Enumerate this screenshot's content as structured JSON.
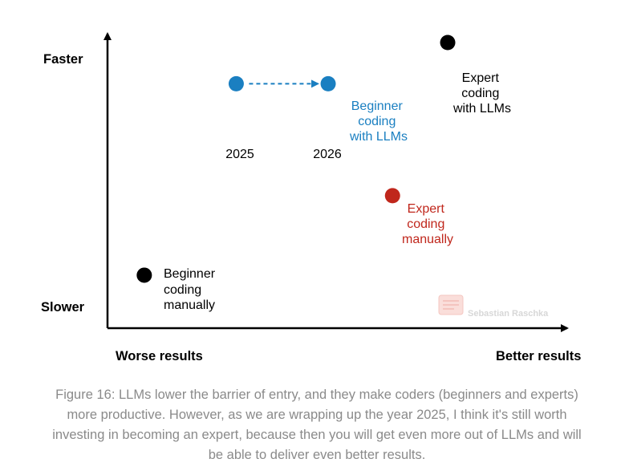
{
  "chart_data": {
    "type": "scatter",
    "title": "",
    "x_axis": {
      "low_label": "Worse results",
      "high_label": "Better results"
    },
    "y_axis": {
      "low_label": "Slower",
      "high_label": "Faster"
    },
    "xlim": [
      0,
      10
    ],
    "ylim": [
      0,
      10
    ],
    "points": [
      {
        "id": "beginner-manual",
        "label_lines": [
          "Beginner",
          "coding",
          "manually"
        ],
        "x": 0.8,
        "y": 1.8,
        "color": "#000000"
      },
      {
        "id": "beginner-llm-2025",
        "label_lines": [
          "2025"
        ],
        "x": 2.8,
        "y": 8.3,
        "color": "#1a7fc1"
      },
      {
        "id": "beginner-llm-2026",
        "label_lines": [
          "2026"
        ],
        "x": 4.8,
        "y": 8.3,
        "color": "#1a7fc1"
      },
      {
        "id": "expert-manual",
        "label_lines": [
          "Expert",
          "coding",
          "manually"
        ],
        "x": 6.2,
        "y": 4.5,
        "color": "#c0271c"
      },
      {
        "id": "expert-llm",
        "label_lines": [
          "Expert",
          "coding",
          "with LLMs"
        ],
        "x": 7.4,
        "y": 9.7,
        "color": "#000000"
      }
    ],
    "group_labels": [
      {
        "id": "beginner-llm-group",
        "label_lines": [
          "Beginner",
          "coding",
          "with LLMs"
        ],
        "color": "#1a7fc1"
      }
    ],
    "arrows": [
      {
        "from": "beginner-llm-2025",
        "to": "beginner-llm-2026",
        "style": "dashed",
        "color": "#1a7fc1"
      }
    ],
    "watermark": "Sebastian Raschka"
  },
  "caption": "Figure 16: LLMs lower the barrier of entry, and they make coders (beginners and experts) more productive. However, as we are wrapping up the year 2025, I think it's still worth investing in becoming an expert, because then you will get even more out of LLMs and will be able to deliver even better results."
}
